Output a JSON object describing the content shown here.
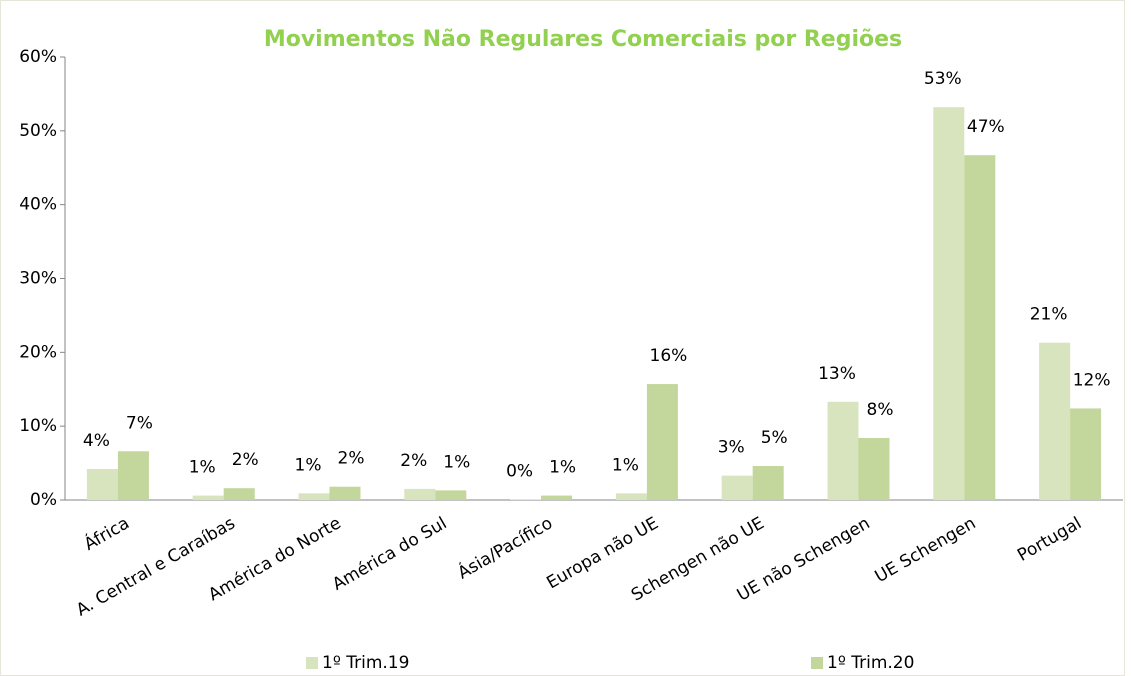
{
  "chart_data": {
    "type": "bar",
    "title": "Movimentos Não Regulares Comerciais por Regiões",
    "categories": [
      "África",
      "A. Central e Caraíbas",
      "América do Norte",
      "América do Sul",
      "Ásia/Pacífico",
      "Europa não UE",
      "Schengen não UE",
      "UE não Schengen",
      "UE Schengen",
      "Portugal"
    ],
    "series": [
      {
        "name": "1º Trim.19",
        "color": "#d7e4bd",
        "values": [
          4.2,
          0.6,
          0.9,
          1.5,
          0.1,
          0.9,
          3.3,
          13.3,
          53.2,
          21.3
        ],
        "value_labels": [
          "4%",
          "1%",
          "1%",
          "2%",
          "0%",
          "1%",
          "3%",
          "13%",
          "53%",
          "21%"
        ]
      },
      {
        "name": "1º Trim.20",
        "color": "#c3d69b",
        "values": [
          6.6,
          1.6,
          1.8,
          1.3,
          0.6,
          15.7,
          4.6,
          8.4,
          46.7,
          12.4
        ],
        "value_labels": [
          "7%",
          "2%",
          "2%",
          "1%",
          "1%",
          "16%",
          "5%",
          "8%",
          "47%",
          "12%"
        ]
      }
    ],
    "ylim": [
      0,
      60
    ],
    "yticks": [
      {
        "value": 0,
        "label": "0%"
      },
      {
        "value": 10,
        "label": "10%"
      },
      {
        "value": 20,
        "label": "20%"
      },
      {
        "value": 30,
        "label": "30%"
      },
      {
        "value": 40,
        "label": "40%"
      },
      {
        "value": 50,
        "label": "50%"
      },
      {
        "value": 60,
        "label": "60%"
      }
    ],
    "grid": false,
    "legend": "bottom"
  }
}
